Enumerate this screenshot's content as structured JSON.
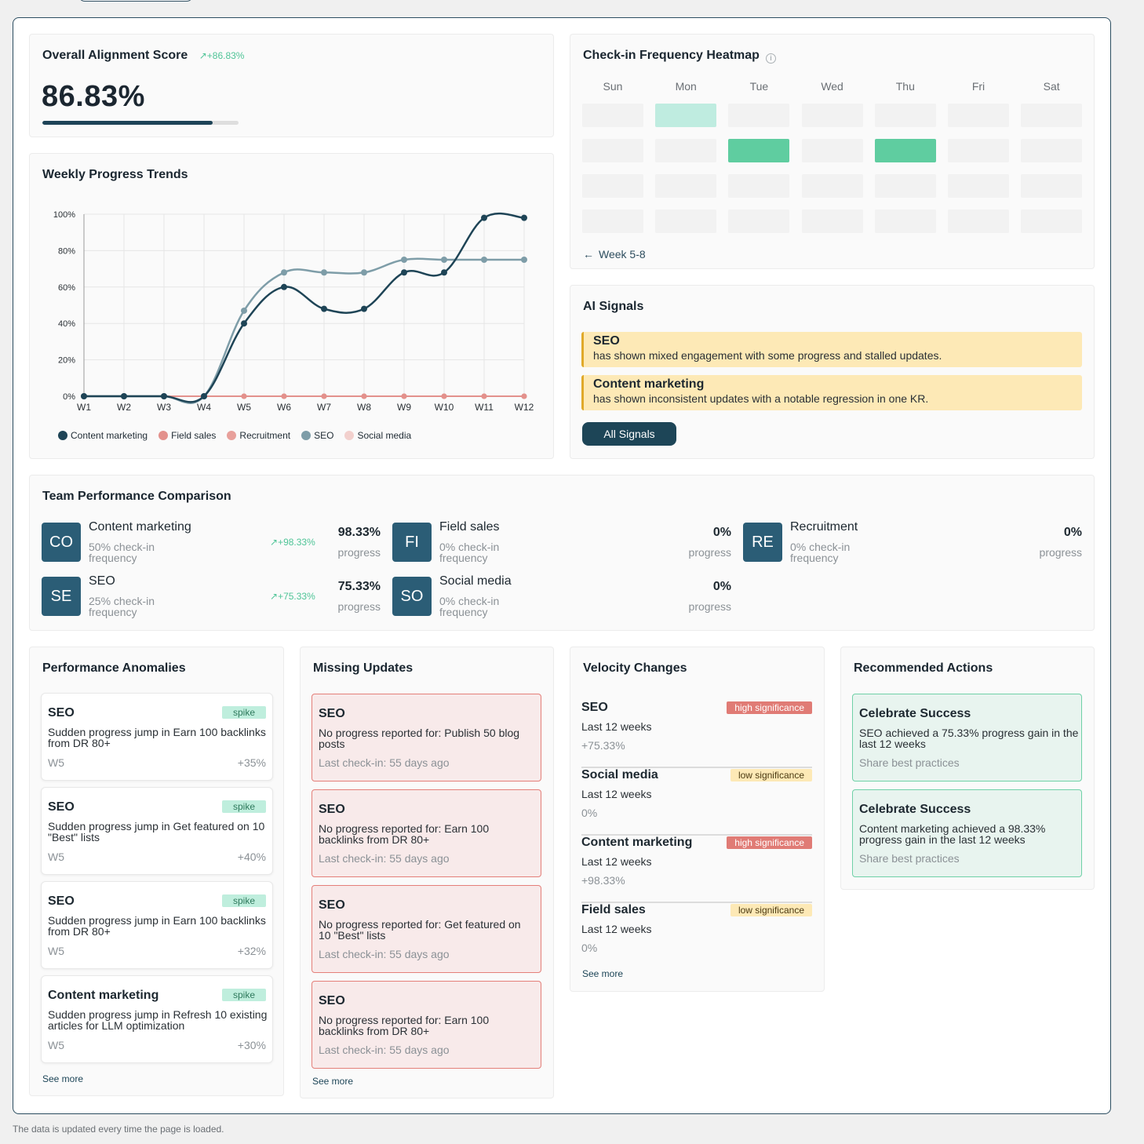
{
  "overall": {
    "title": "Overall Alignment Score",
    "trend": "+86.83%",
    "value": "86.83%",
    "progress": 0.8683
  },
  "weekly": {
    "title": "Weekly Progress Trends"
  },
  "chart_data": {
    "type": "line",
    "x": [
      "W1",
      "W2",
      "W3",
      "W4",
      "W5",
      "W6",
      "W7",
      "W8",
      "W9",
      "W10",
      "W11",
      "W12"
    ],
    "y_ticks": [
      "0%",
      "20%",
      "40%",
      "60%",
      "80%",
      "100%"
    ],
    "ylim": [
      0,
      100
    ],
    "grid": true,
    "legend_position": "bottom",
    "series": [
      {
        "name": "Content marketing",
        "color": "#1e4456",
        "values": [
          0,
          0,
          0,
          0,
          40,
          60,
          48,
          48,
          68,
          68,
          98,
          98
        ]
      },
      {
        "name": "Field sales",
        "color": "#e3918c",
        "values": [
          0,
          0,
          0,
          0,
          0,
          0,
          0,
          0,
          0,
          0,
          0,
          0
        ]
      },
      {
        "name": "Recruitment",
        "color": "#e8a09b",
        "values": [
          0,
          0,
          0,
          0,
          0,
          0,
          0,
          0,
          0,
          0,
          0,
          0
        ]
      },
      {
        "name": "SEO",
        "color": "#7e9da8",
        "values": [
          0,
          0,
          0,
          0,
          47,
          68,
          68,
          68,
          75,
          75,
          75,
          75
        ]
      },
      {
        "name": "Social media",
        "color": "#f2d0cd",
        "values": [
          0,
          0,
          0,
          0,
          0,
          0,
          0,
          0,
          0,
          0,
          0,
          0
        ]
      }
    ]
  },
  "heatmap": {
    "title": "Check-in Frequency Heatmap",
    "days": [
      "Sun",
      "Mon",
      "Tue",
      "Wed",
      "Thu",
      "Fri",
      "Sat"
    ],
    "rows": [
      [
        0,
        1,
        0,
        0,
        0,
        0,
        0
      ],
      [
        0,
        0,
        2,
        0,
        2,
        0,
        0
      ],
      [
        0,
        0,
        0,
        0,
        0,
        0,
        0
      ],
      [
        0,
        0,
        0,
        0,
        0,
        0,
        0
      ]
    ],
    "level_colors": [
      "#f2f2f2",
      "#bfece0",
      "#5fcda0"
    ],
    "nav_label": "Week 5-8"
  },
  "signals": {
    "title": "AI Signals",
    "items": [
      {
        "name": "SEO",
        "text": "has shown mixed engagement with some progress and stalled updates."
      },
      {
        "name": "Content marketing",
        "text": "has shown inconsistent updates with a notable regression in one KR."
      }
    ],
    "button": "All Signals"
  },
  "team": {
    "title": "Team Performance Comparison",
    "items": [
      {
        "badge": "CO",
        "name": "Content marketing",
        "checkin": "50% check-in frequency",
        "trend": "+98.33%",
        "pct": "98.33%",
        "prog": "progress"
      },
      {
        "badge": "FI",
        "name": "Field sales",
        "checkin": "0% check-in frequency",
        "trend": "",
        "pct": "0%",
        "prog": "progress"
      },
      {
        "badge": "RE",
        "name": "Recruitment",
        "checkin": "0% check-in frequency",
        "trend": "",
        "pct": "0%",
        "prog": "progress"
      },
      {
        "badge": "SE",
        "name": "SEO",
        "checkin": "25% check-in frequency",
        "trend": "+75.33%",
        "pct": "75.33%",
        "prog": "progress"
      },
      {
        "badge": "SO",
        "name": "Social media",
        "checkin": "0% check-in frequency",
        "trend": "",
        "pct": "0%",
        "prog": "progress"
      }
    ]
  },
  "anomalies": {
    "title": "Performance Anomalies",
    "items": [
      {
        "name": "SEO",
        "tag": "spike",
        "text": "Sudden progress jump in Earn 100 backlinks from DR 80+",
        "week": "W5",
        "value": "+35%"
      },
      {
        "name": "SEO",
        "tag": "spike",
        "text": "Sudden progress jump in Get featured on 10 \"Best\" lists",
        "week": "W5",
        "value": "+40%"
      },
      {
        "name": "SEO",
        "tag": "spike",
        "text": "Sudden progress jump in Earn 100 backlinks from DR 80+",
        "week": "W5",
        "value": "+32%"
      },
      {
        "name": "Content marketing",
        "tag": "spike",
        "text": "Sudden progress jump in Refresh 10 existing articles for LLM optimization",
        "week": "W5",
        "value": "+30%"
      }
    ],
    "see_more": "See more"
  },
  "missing": {
    "title": "Missing Updates",
    "items": [
      {
        "name": "SEO",
        "text": "No progress reported for: Publish 50 blog posts",
        "last": "Last check-in: 55 days ago"
      },
      {
        "name": "SEO",
        "text": "No progress reported for: Earn 100 backlinks from DR 80+",
        "last": "Last check-in: 55 days ago"
      },
      {
        "name": "SEO",
        "text": "No progress reported for: Get featured on 10 \"Best\" lists",
        "last": "Last check-in: 55 days ago"
      },
      {
        "name": "SEO",
        "text": "No progress reported for: Earn 100 backlinks from DR 80+",
        "last": "Last check-in: 55 days ago"
      }
    ],
    "see_more": "See more"
  },
  "velocity": {
    "title": "Velocity Changes",
    "items": [
      {
        "name": "SEO",
        "tag": "high significance",
        "level": "high",
        "period": "Last 12 weeks",
        "change": "+75.33%"
      },
      {
        "name": "Social media",
        "tag": "low significance",
        "level": "low",
        "period": "Last 12 weeks",
        "change": "0%"
      },
      {
        "name": "Content marketing",
        "tag": "high significance",
        "level": "high",
        "period": "Last 12 weeks",
        "change": "+98.33%"
      },
      {
        "name": "Field sales",
        "tag": "low significance",
        "level": "low",
        "period": "Last 12 weeks",
        "change": "0%"
      }
    ],
    "see_more": "See more"
  },
  "actions": {
    "title": "Recommended Actions",
    "items": [
      {
        "title": "Celebrate Success",
        "text": "SEO achieved a 75.33% progress gain in the last 12 weeks",
        "cta": "Share best practices"
      },
      {
        "title": "Celebrate Success",
        "text": "Content marketing achieved a 98.33% progress gain in the last 12 weeks",
        "cta": "Share best practices"
      }
    ]
  },
  "footer": "The data is updated every time the page is loaded."
}
